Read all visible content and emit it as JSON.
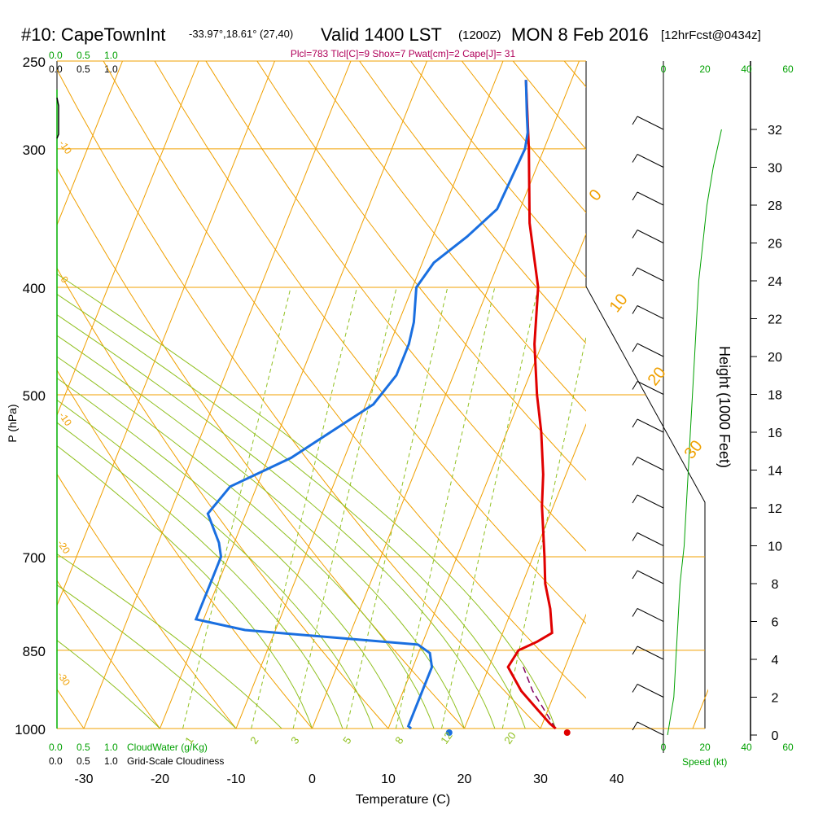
{
  "header": {
    "station": "#10: CapeTownInt",
    "coords": "-33.97°,18.61° (27,40)",
    "valid": "Valid 1400 LST",
    "zulu": "(1200Z)",
    "date": "MON 8 Feb 2016",
    "forecast": "[12hrFcst@0434z]",
    "params": "Plcl=783 Tlcl[C]=9 Shox=7 Pwat[cm]=2 Cape[J]= 31"
  },
  "colors": {
    "temperature": "#e00000",
    "dewpoint": "#1a6fe0",
    "isotherm": "#f0a000",
    "dry_adiabat": "#f0a000",
    "moist_adiabat": "#90c020",
    "mixing_ratio": "#90c020",
    "cloud": "#00a000",
    "params": "#b0005a",
    "parcel": "#800060"
  },
  "chart_data": {
    "type": "line",
    "title": "#10: CapeTownInt",
    "xlabel": "Temperature (C)",
    "ylabel": "P (hPa)",
    "xlim": [
      -34,
      46
    ],
    "ylim": [
      1000,
      250
    ],
    "y_scale": "log",
    "x_ticks": [
      "-30",
      "-20",
      "-10",
      "0",
      "10",
      "20",
      "30",
      "40"
    ],
    "p_ticks": [
      "250",
      "300",
      "400",
      "500",
      "700",
      "850",
      "1000"
    ],
    "series": [
      {
        "name": "Temperature",
        "points": [
          [
            32,
            1000
          ],
          [
            31,
            990
          ],
          [
            28.5,
            960
          ],
          [
            25.5,
            925
          ],
          [
            22.5,
            880
          ],
          [
            23,
            850
          ],
          [
            25,
            835
          ],
          [
            26.5,
            820
          ],
          [
            25,
            780
          ],
          [
            23,
            740
          ],
          [
            21.5,
            700
          ],
          [
            18.5,
            630
          ],
          [
            17,
            590
          ],
          [
            14.5,
            540
          ],
          [
            12,
            500
          ],
          [
            9,
            450
          ],
          [
            6.5,
            400
          ],
          [
            2,
            350
          ],
          [
            -2,
            300
          ],
          [
            -6,
            260
          ]
        ]
      },
      {
        "name": "Dewpoint",
        "points": [
          [
            13,
            1000
          ],
          [
            12.5,
            995
          ],
          [
            12.5,
            960
          ],
          [
            12.5,
            920
          ],
          [
            12.5,
            880
          ],
          [
            11.5,
            855
          ],
          [
            9.5,
            840
          ],
          [
            -14,
            815
          ],
          [
            -21,
            797
          ],
          [
            -21,
            780
          ],
          [
            -21,
            740
          ],
          [
            -21,
            700
          ],
          [
            -22,
            680
          ],
          [
            -25,
            640
          ],
          [
            -23.5,
            605
          ],
          [
            -17,
            570
          ],
          [
            -9,
            510
          ],
          [
            -7.5,
            480
          ],
          [
            -7.5,
            450
          ],
          [
            -8,
            430
          ],
          [
            -9.5,
            400
          ],
          [
            -8.5,
            380
          ],
          [
            -5.5,
            360
          ],
          [
            -3,
            340
          ],
          [
            -2.5,
            300
          ],
          [
            -3,
            290
          ],
          [
            -4,
            280
          ],
          [
            -6,
            260
          ]
        ]
      }
    ],
    "parcel_path": [
      [
        32,
        1000
      ],
      [
        27,
        925
      ],
      [
        24.5,
        880
      ]
    ],
    "surface_temperature": 33.5,
    "surface_dewpoint": 18,
    "isotherm_labels": [
      "0",
      "10",
      "20",
      "30"
    ],
    "left_temp_labels": [
      "-10",
      "0",
      "-10",
      "-20",
      "-30"
    ],
    "mixing_ratio_labels": [
      "1",
      "2",
      "3",
      "5",
      "8",
      "12",
      "20"
    ],
    "height_axis": {
      "label": "Height (1000 Feet)",
      "ticks": [
        "0",
        "2",
        "4",
        "6",
        "8",
        "10",
        "12",
        "14",
        "16",
        "18",
        "20",
        "22",
        "24",
        "26",
        "28",
        "30",
        "32"
      ]
    },
    "speed_axis": {
      "label": "Speed (kt)",
      "ticks": [
        "0",
        "20",
        "40",
        "60"
      ]
    },
    "wind_speed_profile": [
      [
        0,
        2
      ],
      [
        2,
        5
      ],
      [
        4,
        6
      ],
      [
        6,
        7
      ],
      [
        8,
        8
      ],
      [
        10,
        10
      ],
      [
        12,
        11
      ],
      [
        14,
        12
      ],
      [
        16,
        13
      ],
      [
        18,
        14
      ],
      [
        20,
        15
      ],
      [
        22,
        16
      ],
      [
        24,
        17
      ],
      [
        26,
        19
      ],
      [
        28,
        21
      ],
      [
        30,
        24
      ],
      [
        32,
        28
      ]
    ],
    "cloud_scales": {
      "cloud_water_label": "CloudWater (g/Kg)",
      "cloudiness_label": "Grid-Scale Cloudiness",
      "ticks": [
        "0.0",
        "0.5",
        "1.0"
      ]
    },
    "grid": true
  }
}
